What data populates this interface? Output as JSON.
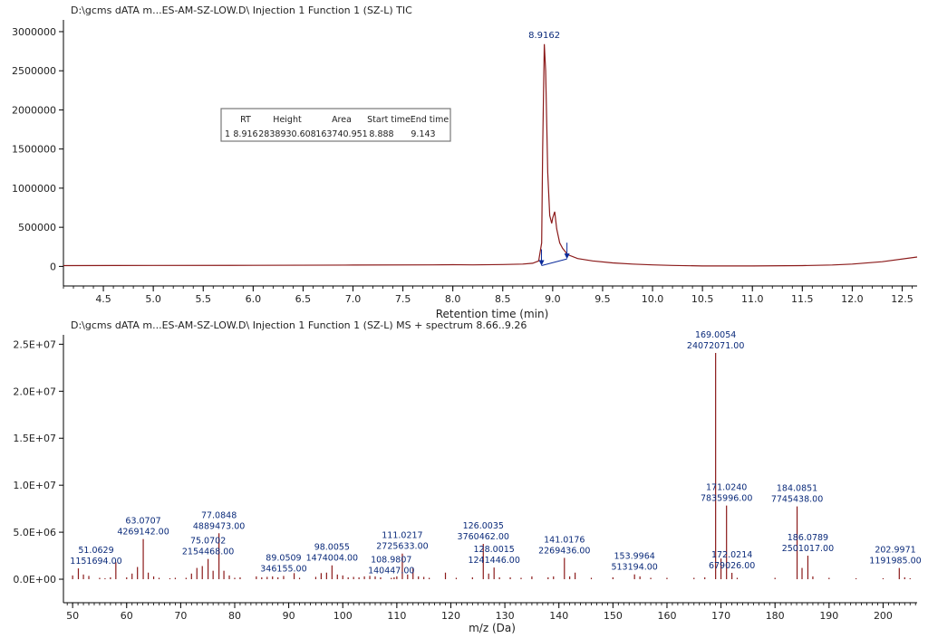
{
  "chart_data": [
    {
      "type": "line",
      "title": "D:\\gcms dATA m...ES-AM-SZ-LOW.D\\ Injection 1 Function 1 (SZ-L) TIC",
      "xlabel": "Retention time (min)",
      "ylabel": "",
      "xlim": [
        4.1,
        12.65
      ],
      "ylim": [
        -250000,
        3150000
      ],
      "x_ticks": [
        "4.5",
        "5.0",
        "5.5",
        "6.0",
        "6.5",
        "7.0",
        "7.5",
        "8.0",
        "8.5",
        "9.0",
        "9.5",
        "10.0",
        "10.5",
        "11.0",
        "11.5",
        "12.0",
        "12.5"
      ],
      "y_ticks": [
        "0",
        "500000",
        "1000000",
        "1500000",
        "2000000",
        "2500000",
        "3000000"
      ],
      "series": [
        {
          "color": "#8b1a1a",
          "points": [
            [
              4.1,
              10000
            ],
            [
              5.0,
              12000
            ],
            [
              6.0,
              14000
            ],
            [
              7.0,
              17000
            ],
            [
              7.8,
              20000
            ],
            [
              8.0,
              22000
            ],
            [
              8.2,
              20000
            ],
            [
              8.5,
              24000
            ],
            [
              8.7,
              30000
            ],
            [
              8.8,
              40000
            ],
            [
              8.86,
              70000
            ],
            [
              8.89,
              300000
            ],
            [
              8.9,
              1500000
            ],
            [
              8.916,
              2840000
            ],
            [
              8.93,
              2500000
            ],
            [
              8.95,
              1200000
            ],
            [
              8.97,
              650000
            ],
            [
              8.99,
              550000
            ],
            [
              9.0,
              620000
            ],
            [
              9.02,
              700000
            ],
            [
              9.04,
              480000
            ],
            [
              9.07,
              300000
            ],
            [
              9.1,
              230000
            ],
            [
              9.15,
              150000
            ],
            [
              9.25,
              100000
            ],
            [
              9.4,
              70000
            ],
            [
              9.6,
              45000
            ],
            [
              9.8,
              30000
            ],
            [
              10.0,
              20000
            ],
            [
              10.2,
              12000
            ],
            [
              10.5,
              6000
            ],
            [
              10.8,
              5000
            ],
            [
              11.0,
              6000
            ],
            [
              11.5,
              10000
            ],
            [
              11.8,
              18000
            ],
            [
              12.0,
              30000
            ],
            [
              12.3,
              60000
            ],
            [
              12.65,
              120000
            ]
          ]
        }
      ],
      "peak_label": {
        "x": 8.9162,
        "y": 2840000,
        "text": "8.9162"
      },
      "markers": [
        {
          "x": 8.888,
          "y": 10000,
          "color": "#0a2a9a"
        },
        {
          "x": 9.143,
          "y": 95000,
          "color": "#0a2a9a"
        }
      ],
      "baseline": {
        "x": [
          8.888,
          9.143
        ],
        "y": [
          10000,
          95000
        ],
        "color": "#0a2a9a"
      },
      "integration_table": {
        "headers": [
          "RT",
          "Height",
          "Area",
          "Start time",
          "End time"
        ],
        "rows": [
          [
            "1",
            "8.916",
            "2838930.608",
            "163740.951",
            "8.888",
            "9.143"
          ]
        ]
      }
    },
    {
      "type": "bar",
      "title": "D:\\gcms dATA m...ES-AM-SZ-LOW.D\\ Injection 1 Function 1 (SZ-L) MS + spectrum 8.66..9.26",
      "xlabel": "m/z (Da)",
      "ylabel": "",
      "xlim": [
        48.3,
        206.3
      ],
      "ylim": [
        -2500000,
        26000000
      ],
      "x_ticks": [
        "50",
        "60",
        "70",
        "80",
        "90",
        "100",
        "110",
        "120",
        "130",
        "140",
        "150",
        "160",
        "170",
        "180",
        "190",
        "200"
      ],
      "y_ticks": [
        "0.0E+00",
        "5.0E+06",
        "1.0E+07",
        "1.5E+07",
        "2.0E+07",
        "2.5E+07"
      ],
      "bar_color": "#8b1a1a",
      "bars": [
        [
          50.0,
          400000
        ],
        [
          51.0629,
          1151694
        ],
        [
          52.0,
          500000
        ],
        [
          53.0,
          350000
        ],
        [
          55.0,
          150000
        ],
        [
          56.0,
          100000
        ],
        [
          57.0,
          200000
        ],
        [
          58.0,
          1800000
        ],
        [
          60.0,
          200000
        ],
        [
          61.0,
          600000
        ],
        [
          62.0,
          1300000
        ],
        [
          63.0707,
          4269142
        ],
        [
          64.0,
          700000
        ],
        [
          65.0,
          300000
        ],
        [
          66.0,
          150000
        ],
        [
          68.0,
          100000
        ],
        [
          69.0,
          150000
        ],
        [
          71.0,
          150000
        ],
        [
          72.0,
          600000
        ],
        [
          73.0,
          1200000
        ],
        [
          74.0,
          1400000
        ],
        [
          75.0702,
          2154468
        ],
        [
          76.0,
          900000
        ],
        [
          77.0848,
          4889473
        ],
        [
          78.0,
          900000
        ],
        [
          79.0,
          400000
        ],
        [
          80.0,
          150000
        ],
        [
          81.0,
          200000
        ],
        [
          84.0,
          300000
        ],
        [
          85.0,
          200000
        ],
        [
          86.0,
          250000
        ],
        [
          87.0,
          300000
        ],
        [
          88.0,
          200000
        ],
        [
          89.0509,
          346155
        ],
        [
          91.0,
          650000
        ],
        [
          92.0,
          150000
        ],
        [
          95.0,
          250000
        ],
        [
          96.0,
          650000
        ],
        [
          97.0,
          700000
        ],
        [
          98.0055,
          1474004
        ],
        [
          99.0,
          500000
        ],
        [
          100.0,
          400000
        ],
        [
          101.0,
          200000
        ],
        [
          102.0,
          250000
        ],
        [
          103.0,
          200000
        ],
        [
          104.0,
          300000
        ],
        [
          105.0,
          350000
        ],
        [
          106.0,
          300000
        ],
        [
          107.0,
          200000
        ],
        [
          108.9807,
          140447
        ],
        [
          109.5,
          200000
        ],
        [
          110.0,
          300000
        ],
        [
          111.0217,
          2725633
        ],
        [
          112.0,
          500000
        ],
        [
          113.0,
          1200000
        ],
        [
          114.0,
          300000
        ],
        [
          115.0,
          250000
        ],
        [
          116.0,
          150000
        ],
        [
          119.0,
          700000
        ],
        [
          121.0,
          150000
        ],
        [
          124.0,
          200000
        ],
        [
          126.0035,
          3760462
        ],
        [
          127.0,
          600000
        ],
        [
          128.0015,
          1241446
        ],
        [
          129.0,
          200000
        ],
        [
          131.0,
          200000
        ],
        [
          133.0,
          150000
        ],
        [
          135.0,
          300000
        ],
        [
          138.0,
          200000
        ],
        [
          139.0,
          300000
        ],
        [
          141.0176,
          2269436
        ],
        [
          142.0,
          300000
        ],
        [
          143.0,
          700000
        ],
        [
          146.0,
          150000
        ],
        [
          150.0,
          200000
        ],
        [
          153.9964,
          513194
        ],
        [
          155.0,
          300000
        ],
        [
          157.0,
          150000
        ],
        [
          160.0,
          150000
        ],
        [
          165.0,
          150000
        ],
        [
          167.0,
          200000
        ],
        [
          169.0054,
          24072071
        ],
        [
          170.0,
          2200000
        ],
        [
          171.024,
          7835996
        ],
        [
          172.0214,
          679026
        ],
        [
          173.0,
          150000
        ],
        [
          180.0,
          150000
        ],
        [
          184.0851,
          7745438
        ],
        [
          185.0,
          1200000
        ],
        [
          186.0789,
          2501017
        ],
        [
          187.0,
          300000
        ],
        [
          190.0,
          150000
        ],
        [
          195.0,
          100000
        ],
        [
          200.0,
          100000
        ],
        [
          202.9971,
          1191985
        ],
        [
          204.0,
          200000
        ],
        [
          205.0,
          100000
        ]
      ],
      "peak_labels": [
        {
          "x": 51.0629,
          "y": 1151694,
          "mz": "51.0629",
          "intensity": "1151694.00"
        },
        {
          "x": 63.0707,
          "y": 4269142,
          "mz": "63.0707",
          "intensity": "4269142.00"
        },
        {
          "x": 75.0702,
          "y": 2154468,
          "mz": "75.0702",
          "intensity": "2154468.00"
        },
        {
          "x": 77.0848,
          "y": 4889473,
          "mz": "77.0848",
          "intensity": "4889473.00"
        },
        {
          "x": 89.0509,
          "y": 346155,
          "mz": "89.0509",
          "intensity": "346155.00"
        },
        {
          "x": 98.0055,
          "y": 1474004,
          "mz": "98.0055",
          "intensity": "1474004.00"
        },
        {
          "x": 108.9807,
          "y": 140447,
          "mz": "108.9807",
          "intensity": "140447.00"
        },
        {
          "x": 111.0217,
          "y": 2725633,
          "mz": "111.0217",
          "intensity": "2725633.00"
        },
        {
          "x": 126.0035,
          "y": 3760462,
          "mz": "126.0035",
          "intensity": "3760462.00"
        },
        {
          "x": 128.0015,
          "y": 1241446,
          "mz": "128.0015",
          "intensity": "1241446.00"
        },
        {
          "x": 141.0176,
          "y": 2269436,
          "mz": "141.0176",
          "intensity": "2269436.00"
        },
        {
          "x": 153.9964,
          "y": 513194,
          "mz": "153.9964",
          "intensity": "513194.00"
        },
        {
          "x": 169.0054,
          "y": 24072071,
          "mz": "169.0054",
          "intensity": "24072071.00"
        },
        {
          "x": 171.024,
          "y": 7835996,
          "mz": "171.0240",
          "intensity": "7835996.00"
        },
        {
          "x": 172.0214,
          "y": 679026,
          "mz": "172.0214",
          "intensity": "679026.00"
        },
        {
          "x": 184.0851,
          "y": 7745438,
          "mz": "184.0851",
          "intensity": "7745438.00"
        },
        {
          "x": 186.0789,
          "y": 2501017,
          "mz": "186.0789",
          "intensity": "2501017.00"
        },
        {
          "x": 202.9971,
          "y": 1191985,
          "mz": "202.9971",
          "intensity": "1191985.00"
        }
      ]
    }
  ],
  "colors": {
    "trace": "#8b1a1a",
    "annotation": "#0a2a7a",
    "axis": "#000000",
    "text": "#222222"
  }
}
